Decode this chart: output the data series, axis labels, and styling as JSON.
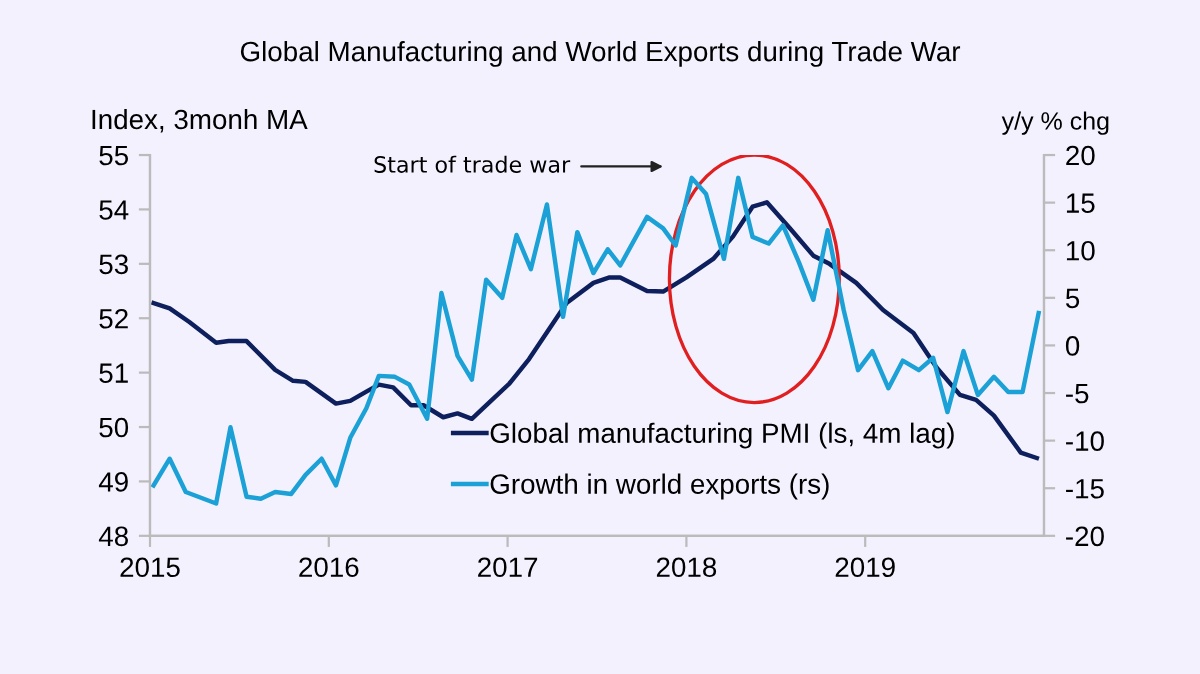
{
  "chart_data": {
    "type": "line",
    "title": "Global Manufacturing and World Exports during Trade War",
    "ylabel": "Index, 3monh MA",
    "y2label": "y/y % chg",
    "annotations": [
      "Start of trade war"
    ],
    "xlim": [
      2015,
      2020
    ],
    "xticks": [
      2015,
      2016,
      2017,
      2018,
      2019
    ],
    "ylim": [
      48,
      55
    ],
    "yticks": [
      48,
      49,
      50,
      51,
      52,
      53,
      54,
      55
    ],
    "y2lim": [
      -20,
      20
    ],
    "y2ticks": [
      -20,
      -15,
      -10,
      -5,
      0,
      5,
      10,
      15,
      20
    ],
    "grid": false,
    "legend": "bottom",
    "marker": "none",
    "line_style": "solid",
    "series": [
      {
        "name": "Global manufacturing PMI (ls, 4m lag)",
        "color": "#0d1f5c",
        "axis": "y",
        "x": [
          2015.02,
          2015.11,
          2015.22,
          2015.37,
          2015.44,
          2015.54,
          2015.7,
          2015.8,
          2015.87,
          2016.04,
          2016.12,
          2016.21,
          2016.28,
          2016.36,
          2016.46,
          2016.53,
          2016.64,
          2016.72,
          2016.8,
          2016.88,
          2017.01,
          2017.12,
          2017.24,
          2017.33,
          2017.48,
          2017.57,
          2017.63,
          2017.78,
          2017.87,
          2018.0,
          2018.15,
          2018.26,
          2018.37,
          2018.45,
          2018.58,
          2018.71,
          2018.8,
          2018.95,
          2019.1,
          2019.27,
          2019.4,
          2019.53,
          2019.62,
          2019.72,
          2019.87,
          2019.96
        ],
        "values": [
          52.28,
          52.18,
          51.93,
          51.55,
          51.58,
          51.58,
          51.05,
          50.85,
          50.83,
          50.43,
          50.48,
          50.65,
          50.78,
          50.73,
          50.4,
          50.4,
          50.18,
          50.25,
          50.15,
          50.4,
          50.8,
          51.25,
          51.84,
          52.28,
          52.65,
          52.75,
          52.75,
          52.5,
          52.49,
          52.75,
          53.09,
          53.5,
          54.05,
          54.13,
          53.65,
          53.15,
          53.0,
          52.65,
          52.15,
          51.73,
          51.09,
          50.59,
          50.5,
          50.21,
          49.53,
          49.43
        ]
      },
      {
        "name": "Growth in world exports (rs)",
        "color": "#1ba1d6",
        "axis": "y2",
        "x": [
          2015.02,
          2015.11,
          2015.2,
          2015.37,
          2015.45,
          2015.54,
          2015.62,
          2015.7,
          2015.79,
          2015.87,
          2015.96,
          2016.04,
          2016.12,
          2016.21,
          2016.28,
          2016.37,
          2016.45,
          2016.55,
          2016.63,
          2016.72,
          2016.8,
          2016.88,
          2016.97,
          2017.05,
          2017.13,
          2017.22,
          2017.31,
          2017.39,
          2017.48,
          2017.56,
          2017.63,
          2017.78,
          2017.87,
          2017.94,
          2018.03,
          2018.11,
          2018.21,
          2018.29,
          2018.37,
          2018.46,
          2018.54,
          2018.63,
          2018.71,
          2018.79,
          2018.88,
          2018.96,
          2019.04,
          2019.13,
          2019.21,
          2019.3,
          2019.38,
          2019.46,
          2019.55,
          2019.63,
          2019.72,
          2019.8,
          2019.88,
          2019.97
        ],
        "values": [
          -14.7,
          -11.9,
          -15.4,
          -16.6,
          -8.6,
          -15.9,
          -16.1,
          -15.4,
          -15.6,
          -13.6,
          -11.9,
          -14.7,
          -9.7,
          -6.6,
          -3.2,
          -3.3,
          -4.1,
          -7.7,
          5.5,
          -1.1,
          -3.6,
          6.9,
          5.0,
          11.6,
          8.0,
          14.8,
          3.0,
          11.9,
          7.6,
          10.1,
          8.4,
          13.5,
          12.3,
          10.5,
          17.6,
          15.9,
          9.1,
          17.6,
          11.4,
          10.7,
          12.6,
          8.7,
          4.8,
          12.1,
          3.7,
          -2.6,
          -0.6,
          -4.5,
          -1.6,
          -2.6,
          -1.3,
          -7.0,
          -0.6,
          -5.2,
          -3.3,
          -4.9,
          -4.9,
          3.4
        ]
      }
    ]
  }
}
